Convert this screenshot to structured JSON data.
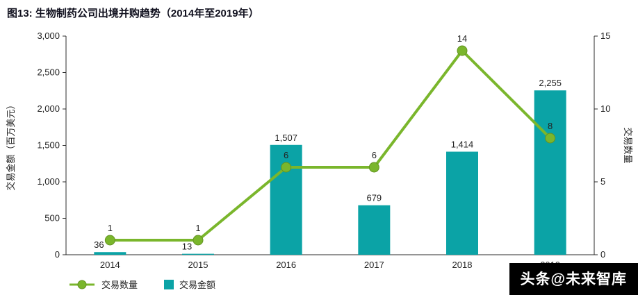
{
  "title": "图13: 生物制药公司出境并购趋势（2014年至2019年）",
  "chart_data": {
    "type": "combo",
    "categories": [
      "2014",
      "2015",
      "2016",
      "2017",
      "2018",
      "2019"
    ],
    "series": [
      {
        "name": "交易金额",
        "type": "bar",
        "axis": "left",
        "color": "#0ba3a6",
        "values": [
          36,
          13,
          1507,
          679,
          1414,
          2255
        ],
        "labels": [
          "36",
          "13",
          "1,507",
          "679",
          "1,414",
          "2,255"
        ]
      },
      {
        "name": "交易数量",
        "type": "line",
        "axis": "right",
        "color": "#7ab62c",
        "values": [
          1,
          1,
          6,
          6,
          14,
          8
        ],
        "labels": [
          "1",
          "1",
          "6",
          "6",
          "14",
          "8"
        ]
      }
    ],
    "left_axis": {
      "label": "交易金额（百万美元）",
      "min": 0,
      "max": 3000,
      "step": 500,
      "ticks": [
        "0",
        "500",
        "1,000",
        "1,500",
        "2,000",
        "2,500",
        "3,000"
      ]
    },
    "right_axis": {
      "label": "交易数量",
      "min": 0,
      "max": 15,
      "step": 5,
      "ticks": [
        "0",
        "5",
        "10",
        "15"
      ]
    },
    "legend": [
      {
        "label": "交易数量",
        "marker": "line"
      },
      {
        "label": "交易金额",
        "marker": "bar"
      }
    ],
    "grid": false,
    "legend_position": "bottom-left"
  },
  "watermark": {
    "text": "头条@未来智库"
  },
  "colors": {
    "bar": "#0ba3a6",
    "line": "#7ab62c",
    "axis": "#2b2b2b",
    "label": "#222222",
    "title": "#10101e"
  }
}
